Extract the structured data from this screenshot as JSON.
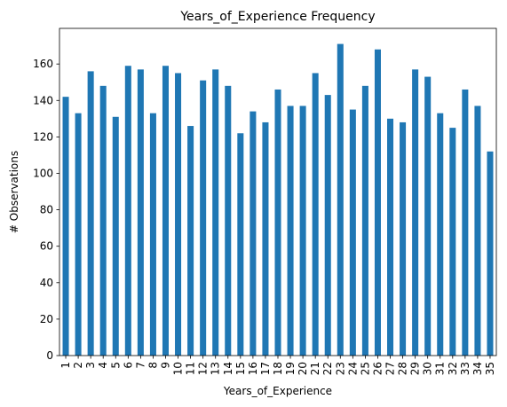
{
  "chart_data": {
    "type": "bar",
    "title": "Years_of_Experience Frequency",
    "xlabel": "Years_of_Experience",
    "ylabel": "# Observations",
    "categories": [
      "1",
      "2",
      "3",
      "4",
      "5",
      "6",
      "7",
      "8",
      "9",
      "10",
      "11",
      "12",
      "13",
      "14",
      "15",
      "16",
      "17",
      "18",
      "19",
      "20",
      "21",
      "22",
      "23",
      "24",
      "25",
      "26",
      "27",
      "28",
      "29",
      "30",
      "31",
      "32",
      "33",
      "34",
      "35"
    ],
    "values": [
      142,
      133,
      156,
      148,
      131,
      159,
      157,
      133,
      159,
      155,
      126,
      151,
      157,
      148,
      122,
      134,
      128,
      146,
      137,
      137,
      155,
      143,
      171,
      135,
      148,
      168,
      130,
      128,
      157,
      153,
      133,
      125,
      146,
      137,
      112
    ],
    "ylim": [
      0,
      179.55
    ],
    "yticks": [
      0,
      20,
      40,
      60,
      80,
      100,
      120,
      140,
      160
    ],
    "grid": false,
    "bar_color": "#1f77b4"
  }
}
